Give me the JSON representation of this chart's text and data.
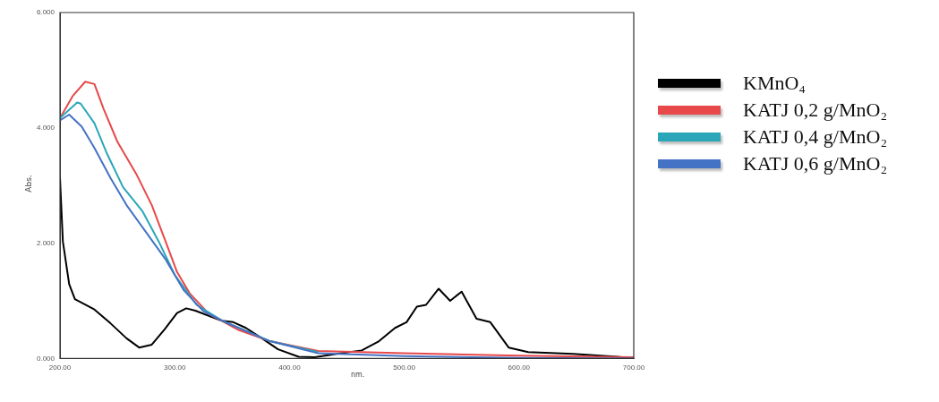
{
  "chart_data": {
    "type": "line",
    "xlabel": "nm.",
    "ylabel": "Abs.",
    "xlim": [
      200,
      700
    ],
    "ylim": [
      0,
      6
    ],
    "xticks": [
      {
        "value": 200,
        "label": "200.00"
      },
      {
        "value": 300,
        "label": "300.00"
      },
      {
        "value": 400,
        "label": "400.00"
      },
      {
        "value": 500,
        "label": "500.00"
      },
      {
        "value": 600,
        "label": "600.00"
      },
      {
        "value": 700,
        "label": "700.00"
      }
    ],
    "yticks": [
      {
        "value": 0,
        "label": "0.000"
      },
      {
        "value": 2,
        "label": "2.000"
      },
      {
        "value": 4,
        "label": "4.000"
      },
      {
        "value": 6,
        "label": "6.000"
      }
    ],
    "grid": false,
    "legend": "right",
    "marker": "none",
    "line_style": "solid",
    "series": [
      {
        "name": "KMnO₄",
        "color": "#000000",
        "x": [
          200,
          202.5,
          208,
          213,
          230,
          244,
          258,
          269,
          280,
          291,
          302,
          310,
          318,
          340,
          351,
          362,
          376,
          390,
          408,
          422,
          441,
          463,
          478,
          492,
          502,
          511,
          519,
          530,
          540,
          550,
          563,
          575,
          591,
          608,
          647,
          686,
          700
        ],
        "values": [
          3.13,
          2.03,
          1.29,
          1.03,
          0.85,
          0.61,
          0.35,
          0.19,
          0.24,
          0.5,
          0.79,
          0.87,
          0.83,
          0.66,
          0.63,
          0.53,
          0.35,
          0.16,
          0.03,
          0.02,
          0.08,
          0.14,
          0.3,
          0.53,
          0.63,
          0.9,
          0.93,
          1.21,
          1.0,
          1.16,
          0.69,
          0.63,
          0.19,
          0.11,
          0.08,
          0.03,
          0
        ]
      },
      {
        "name": "KATJ 0,2 g/MnO₂",
        "color": "#e8484a",
        "x": [
          200,
          211,
          222,
          230,
          238,
          250,
          267,
          280,
          292,
          302,
          313,
          330,
          355,
          383,
          425,
          500,
          600,
          700
        ],
        "values": [
          4.17,
          4.55,
          4.8,
          4.76,
          4.33,
          3.76,
          3.18,
          2.66,
          2.03,
          1.5,
          1.13,
          0.77,
          0.5,
          0.3,
          0.13,
          0.09,
          0.05,
          0.02
        ]
      },
      {
        "name": "KATJ 0,4 g/MnO₂",
        "color": "#2aa6b8",
        "x": [
          200,
          215,
          218,
          230,
          241,
          255,
          272,
          286,
          300,
          319,
          341,
          383,
          425
        ],
        "values": [
          4.17,
          4.44,
          4.42,
          4.08,
          3.55,
          2.97,
          2.55,
          2.03,
          1.45,
          0.93,
          0.66,
          0.3,
          0.11
        ]
      },
      {
        "name": "KATJ 0,6 g/MnO₂",
        "color": "#4472c4",
        "x": [
          200,
          208,
          219,
          230,
          244,
          258,
          275,
          292,
          308,
          325,
          345,
          383,
          425,
          500,
          600,
          700
        ],
        "values": [
          4.13,
          4.23,
          4.02,
          3.65,
          3.13,
          2.66,
          2.19,
          1.72,
          1.18,
          0.82,
          0.62,
          0.3,
          0.09,
          0.04,
          0.01,
          0
        ]
      }
    ]
  }
}
